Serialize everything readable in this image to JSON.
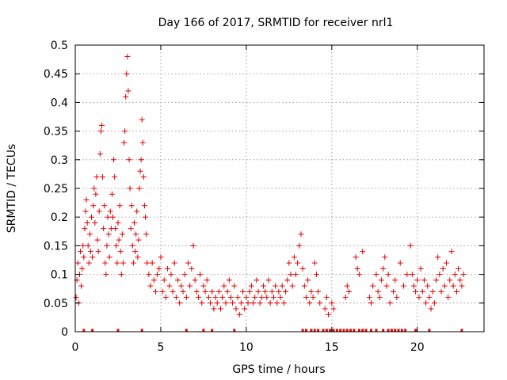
{
  "chart_data": {
    "type": "scatter",
    "title": "Day 166 of 2017, SRMTID for receiver nrl1",
    "xlabel": "GPS time / hours",
    "ylabel": "SRMTID / TECUs",
    "xlim": [
      0,
      23.9
    ],
    "ylim": [
      0,
      0.5
    ],
    "x_ticks": [
      0,
      5,
      10,
      15,
      20
    ],
    "x_tick_labels": [
      "0",
      "5",
      "10",
      "15",
      "20"
    ],
    "y_ticks": [
      0,
      0.05,
      0.1,
      0.15,
      0.2,
      0.25,
      0.3,
      0.35,
      0.4,
      0.45,
      0.5
    ],
    "y_tick_labels": [
      "0",
      "0.05",
      "0.1",
      "0.15",
      "0.2",
      "0.25",
      "0.3",
      "0.35",
      "0.4",
      "0.45",
      "0.5"
    ],
    "grid": true,
    "marker": "+",
    "color": "#e00000",
    "series": [
      {
        "name": "SRMTID",
        "points": [
          [
            0.05,
            0.06
          ],
          [
            0.1,
            0.09
          ],
          [
            0.15,
            0.12
          ],
          [
            0.2,
            0.05
          ],
          [
            0.25,
            0.1
          ],
          [
            0.3,
            0.14
          ],
          [
            0.35,
            0.08
          ],
          [
            0.4,
            0.11
          ],
          [
            0.45,
            0.15
          ],
          [
            0.5,
            0.13
          ],
          [
            0.55,
            0.18
          ],
          [
            0.6,
            0.21
          ],
          [
            0.65,
            0.23
          ],
          [
            0.7,
            0.19
          ],
          [
            0.75,
            0.15
          ],
          [
            0.8,
            0.12
          ],
          [
            0.85,
            0.17
          ],
          [
            0.9,
            0.14
          ],
          [
            0.95,
            0.2
          ],
          [
            1.0,
            0.13
          ],
          [
            1.05,
            0.22
          ],
          [
            1.1,
            0.25
          ],
          [
            1.15,
            0.19
          ],
          [
            1.2,
            0.24
          ],
          [
            1.25,
            0.27
          ],
          [
            1.3,
            0.16
          ],
          [
            1.35,
            0.14
          ],
          [
            1.4,
            0.21
          ],
          [
            1.45,
            0.31
          ],
          [
            1.5,
            0.35
          ],
          [
            1.55,
            0.36
          ],
          [
            1.6,
            0.27
          ],
          [
            1.65,
            0.18
          ],
          [
            1.7,
            0.22
          ],
          [
            1.75,
            0.12
          ],
          [
            1.8,
            0.1
          ],
          [
            1.85,
            0.15
          ],
          [
            1.9,
            0.2
          ],
          [
            1.95,
            0.17
          ],
          [
            2.0,
            0.13
          ],
          [
            2.05,
            0.21
          ],
          [
            2.1,
            0.18
          ],
          [
            2.15,
            0.24
          ],
          [
            2.2,
            0.2
          ],
          [
            2.25,
            0.3
          ],
          [
            2.3,
            0.27
          ],
          [
            2.35,
            0.18
          ],
          [
            2.4,
            0.15
          ],
          [
            2.45,
            0.12
          ],
          [
            2.5,
            0.19
          ],
          [
            2.55,
            0.16
          ],
          [
            2.6,
            0.22
          ],
          [
            2.65,
            0.14
          ],
          [
            2.7,
            0.1
          ],
          [
            2.75,
            0.17
          ],
          [
            2.8,
            0.12
          ],
          [
            2.85,
            0.33
          ],
          [
            2.9,
            0.35
          ],
          [
            2.95,
            0.41
          ],
          [
            3.0,
            0.45
          ],
          [
            3.05,
            0.48
          ],
          [
            3.1,
            0.42
          ],
          [
            3.15,
            0.3
          ],
          [
            3.2,
            0.25
          ],
          [
            3.25,
            0.18
          ],
          [
            3.3,
            0.22
          ],
          [
            3.35,
            0.15
          ],
          [
            3.4,
            0.12
          ],
          [
            3.45,
            0.19
          ],
          [
            3.5,
            0.14
          ],
          [
            3.55,
            0.17
          ],
          [
            3.6,
            0.21
          ],
          [
            3.65,
            0.13
          ],
          [
            3.7,
            0.16
          ],
          [
            3.75,
            0.25
          ],
          [
            3.8,
            0.28
          ],
          [
            3.85,
            0.3
          ],
          [
            3.9,
            0.37
          ],
          [
            3.95,
            0.33
          ],
          [
            4.0,
            0.27
          ],
          [
            4.05,
            0.22
          ],
          [
            4.1,
            0.2
          ],
          [
            4.15,
            0.17
          ],
          [
            4.2,
            0.12
          ],
          [
            4.3,
            0.1
          ],
          [
            4.4,
            0.08
          ],
          [
            4.5,
            0.12
          ],
          [
            4.6,
            0.09
          ],
          [
            4.7,
            0.07
          ],
          [
            4.8,
            0.1
          ],
          [
            4.9,
            0.11
          ],
          [
            5.0,
            0.13
          ],
          [
            5.1,
            0.07
          ],
          [
            5.2,
            0.09
          ],
          [
            5.3,
            0.06
          ],
          [
            5.4,
            0.11
          ],
          [
            5.5,
            0.08
          ],
          [
            5.6,
            0.1
          ],
          [
            5.7,
            0.07
          ],
          [
            5.8,
            0.12
          ],
          [
            5.9,
            0.06
          ],
          [
            6.0,
            0.09
          ],
          [
            6.1,
            0.05
          ],
          [
            6.2,
            0.08
          ],
          [
            6.3,
            0.07
          ],
          [
            6.4,
            0.1
          ],
          [
            6.5,
            0.06
          ],
          [
            6.6,
            0.12
          ],
          [
            6.7,
            0.08
          ],
          [
            6.8,
            0.11
          ],
          [
            6.9,
            0.15
          ],
          [
            7.0,
            0.09
          ],
          [
            7.1,
            0.07
          ],
          [
            7.2,
            0.06
          ],
          [
            7.3,
            0.1
          ],
          [
            7.4,
            0.05
          ],
          [
            7.5,
            0.08
          ],
          [
            7.6,
            0.07
          ],
          [
            7.7,
            0.09
          ],
          [
            7.8,
            0.06
          ],
          [
            7.9,
            0.05
          ],
          [
            8.0,
            0.07
          ],
          [
            8.1,
            0.04
          ],
          [
            8.2,
            0.06
          ],
          [
            8.3,
            0.05
          ],
          [
            8.4,
            0.07
          ],
          [
            8.5,
            0.04
          ],
          [
            8.6,
            0.06
          ],
          [
            8.7,
            0.08
          ],
          [
            8.8,
            0.05
          ],
          [
            8.9,
            0.07
          ],
          [
            9.0,
            0.09
          ],
          [
            9.1,
            0.06
          ],
          [
            9.2,
            0.05
          ],
          [
            9.3,
            0.08
          ],
          [
            9.4,
            0.04
          ],
          [
            9.5,
            0.06
          ],
          [
            9.6,
            0.03
          ],
          [
            9.7,
            0.05
          ],
          [
            9.8,
            0.07
          ],
          [
            9.9,
            0.04
          ],
          [
            10.0,
            0.06
          ],
          [
            10.1,
            0.05
          ],
          [
            10.2,
            0.07
          ],
          [
            10.3,
            0.08
          ],
          [
            10.4,
            0.05
          ],
          [
            10.5,
            0.06
          ],
          [
            10.6,
            0.09
          ],
          [
            10.7,
            0.07
          ],
          [
            10.8,
            0.05
          ],
          [
            10.9,
            0.06
          ],
          [
            11.0,
            0.08
          ],
          [
            11.1,
            0.07
          ],
          [
            11.2,
            0.06
          ],
          [
            11.3,
            0.09
          ],
          [
            11.4,
            0.05
          ],
          [
            11.5,
            0.07
          ],
          [
            11.6,
            0.06
          ],
          [
            11.7,
            0.08
          ],
          [
            11.8,
            0.05
          ],
          [
            11.9,
            0.07
          ],
          [
            12.0,
            0.06
          ],
          [
            12.1,
            0.08
          ],
          [
            12.2,
            0.05
          ],
          [
            12.3,
            0.07
          ],
          [
            12.4,
            0.09
          ],
          [
            12.5,
            0.12
          ],
          [
            12.6,
            0.1
          ],
          [
            12.7,
            0.08
          ],
          [
            12.8,
            0.13
          ],
          [
            12.9,
            0.1
          ],
          [
            13.0,
            0.12
          ],
          [
            13.1,
            0.15
          ],
          [
            13.2,
            0.17
          ],
          [
            13.3,
            0.11
          ],
          [
            13.4,
            0.08
          ],
          [
            13.5,
            0.06
          ],
          [
            13.6,
            0.09
          ],
          [
            13.7,
            0.05
          ],
          [
            13.8,
            0.07
          ],
          [
            13.9,
            0.06
          ],
          [
            14.0,
            0.12
          ],
          [
            14.1,
            0.1
          ],
          [
            14.2,
            0.07
          ],
          [
            14.3,
            0.05
          ],
          [
            14.6,
            0.04
          ],
          [
            14.7,
            0.06
          ],
          [
            14.8,
            0.03
          ],
          [
            15.0,
            0.05
          ],
          [
            15.1,
            0.04
          ],
          [
            15.8,
            0.06
          ],
          [
            15.9,
            0.08
          ],
          [
            16.0,
            0.07
          ],
          [
            16.4,
            0.13
          ],
          [
            16.5,
            0.11
          ],
          [
            16.6,
            0.1
          ],
          [
            16.8,
            0.14
          ],
          [
            17.2,
            0.06
          ],
          [
            17.3,
            0.05
          ],
          [
            17.4,
            0.08
          ],
          [
            17.6,
            0.1
          ],
          [
            17.7,
            0.07
          ],
          [
            17.8,
            0.06
          ],
          [
            17.9,
            0.09
          ],
          [
            18.0,
            0.11
          ],
          [
            18.1,
            0.13
          ],
          [
            18.2,
            0.08
          ],
          [
            18.3,
            0.1
          ],
          [
            18.4,
            0.05
          ],
          [
            18.6,
            0.07
          ],
          [
            18.7,
            0.09
          ],
          [
            18.8,
            0.06
          ],
          [
            19.0,
            0.12
          ],
          [
            19.2,
            0.08
          ],
          [
            19.4,
            0.1
          ],
          [
            19.6,
            0.15
          ],
          [
            19.7,
            0.1
          ],
          [
            19.8,
            0.08
          ],
          [
            19.9,
            0.07
          ],
          [
            20.0,
            0.09
          ],
          [
            20.1,
            0.06
          ],
          [
            20.2,
            0.11
          ],
          [
            20.3,
            0.07
          ],
          [
            20.4,
            0.09
          ],
          [
            20.5,
            0.05
          ],
          [
            20.6,
            0.08
          ],
          [
            20.7,
            0.06
          ],
          [
            20.8,
            0.04
          ],
          [
            20.9,
            0.07
          ],
          [
            21.0,
            0.05
          ],
          [
            21.1,
            0.09
          ],
          [
            21.2,
            0.13
          ],
          [
            21.3,
            0.1
          ],
          [
            21.4,
            0.07
          ],
          [
            21.5,
            0.11
          ],
          [
            21.6,
            0.08
          ],
          [
            21.7,
            0.12
          ],
          [
            21.8,
            0.06
          ],
          [
            21.9,
            0.09
          ],
          [
            22.0,
            0.14
          ],
          [
            22.1,
            0.08
          ],
          [
            22.2,
            0.1
          ],
          [
            22.3,
            0.07
          ],
          [
            22.4,
            0.11
          ],
          [
            22.5,
            0.09
          ],
          [
            22.6,
            0.08
          ],
          [
            22.7,
            0.1
          ]
        ]
      }
    ],
    "gap_markers_y": 0,
    "gap_markers_x": [
      0.5,
      1.0,
      2.5,
      3.9,
      6.5,
      7.5,
      8.0,
      9.3,
      13.3,
      13.5,
      13.8,
      14.0,
      14.2,
      14.5,
      14.7,
      14.9,
      15.1,
      15.3,
      15.5,
      15.7,
      15.9,
      16.1,
      16.3,
      16.6,
      16.8,
      17.0,
      17.3,
      17.6,
      18.0,
      18.3,
      18.5,
      18.7,
      18.9,
      19.1,
      19.3,
      19.9,
      20.7,
      22.6
    ]
  }
}
